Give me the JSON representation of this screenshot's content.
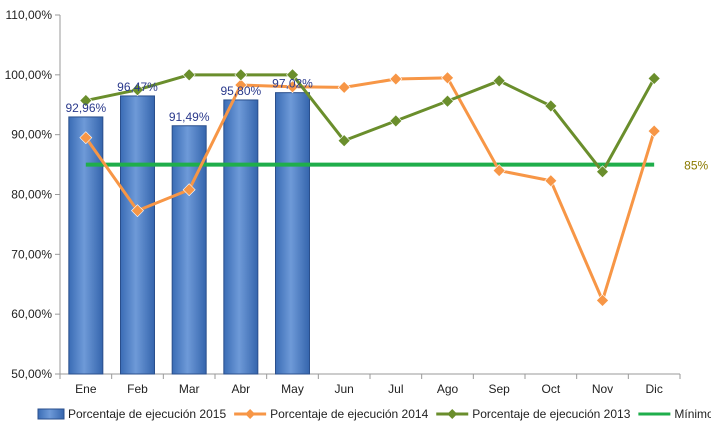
{
  "chart_data": {
    "type": "bar",
    "categories": [
      "Ene",
      "Feb",
      "Mar",
      "Abr",
      "May",
      "Jun",
      "Jul",
      "Ago",
      "Sep",
      "Oct",
      "Nov",
      "Dic"
    ],
    "ylim": [
      50,
      110
    ],
    "yticks": [
      50,
      60,
      70,
      80,
      90,
      100,
      110
    ],
    "ytick_labels": [
      "50,00%",
      "60,00%",
      "70,00%",
      "80,00%",
      "90,00%",
      "100,00%",
      "110,00%"
    ],
    "grid": false,
    "legend_position": "bottom",
    "series": [
      {
        "name": "Porcentaje de ejecución 2015",
        "type": "bar",
        "color": "#4f81c7",
        "values": [
          92.96,
          96.47,
          91.49,
          95.8,
          97.02,
          null,
          null,
          null,
          null,
          null,
          null,
          null
        ],
        "labels": [
          "92,96%",
          "96,47%",
          "91,49%",
          "95,80%",
          "97,02%"
        ]
      },
      {
        "name": "Porcentaje de ejecución 2014",
        "type": "line",
        "color": "#f79646",
        "values": [
          89.5,
          77.3,
          80.8,
          98.3,
          98.0,
          97.9,
          99.3,
          99.5,
          84.0,
          82.3,
          62.3,
          90.6
        ]
      },
      {
        "name": "Porcentaje de ejecución 2013",
        "type": "line",
        "color": "#6a8e2c",
        "values": [
          95.7,
          97.5,
          100.0,
          100.0,
          100.0,
          89.0,
          92.3,
          95.6,
          99.0,
          94.8,
          83.8,
          99.4
        ]
      },
      {
        "name": "Mínimo CEPIS",
        "type": "line",
        "color": "#1fae4b",
        "values": [
          85,
          85,
          85,
          85,
          85,
          85,
          85,
          85,
          85,
          85,
          85,
          85
        ],
        "end_label": "85%"
      }
    ]
  }
}
